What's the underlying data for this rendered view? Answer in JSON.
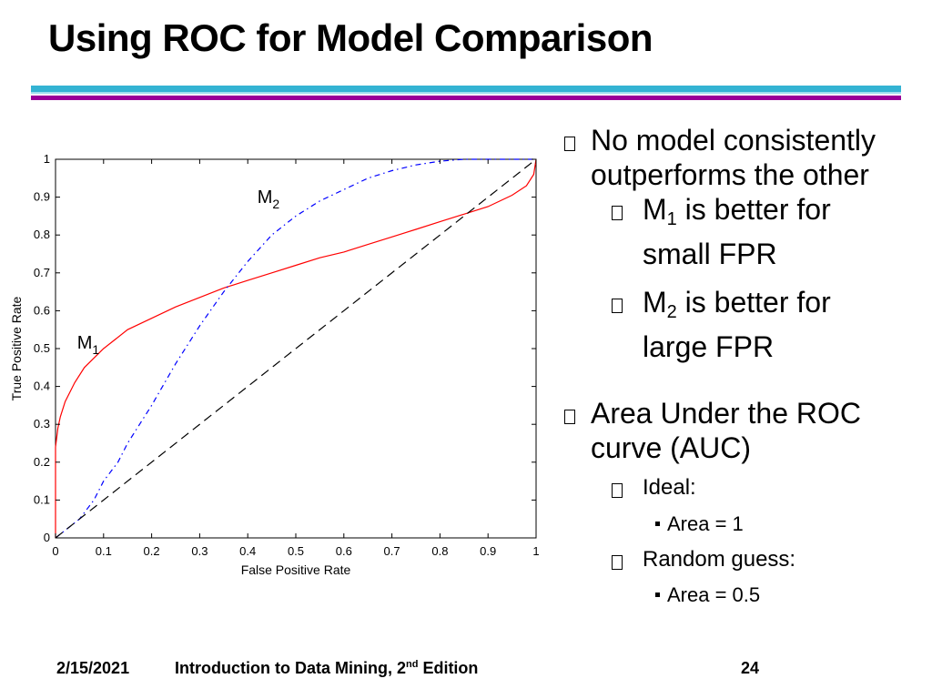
{
  "title": "Using ROC for Model Comparison",
  "bullets": {
    "b1_line1": "No model consistently",
    "b1_line2": "outperforms the other",
    "m1_main": "M",
    "m1_sub": "1",
    "m1_rest": " is better for",
    "m1_line2": "small FPR",
    "m2_main": "M",
    "m2_sub": "2",
    "m2_rest": " is better for",
    "m2_line2": "large FPR",
    "b2_line1": "Area Under the ROC",
    "b2_line2": "curve (AUC)",
    "ideal": "Ideal:",
    "ideal_area": "Area = 1",
    "random": "Random guess:",
    "random_area": "Area = 0.5"
  },
  "footer": {
    "date": "2/15/2021",
    "book_pre": "Introduction to Data Mining, 2",
    "book_sup": "nd",
    "book_post": " Edition",
    "page": "24"
  },
  "colors": {
    "m1": "#ff0000",
    "m2": "#0000ff",
    "diagonal": "#000000",
    "rule_cyan": "#33b3d3",
    "rule_purple": "#990099"
  },
  "chart_data": {
    "type": "line",
    "xlabel": "False Positive Rate",
    "ylabel": "True Positive Rate",
    "xlim": [
      0,
      1
    ],
    "ylim": [
      0,
      1
    ],
    "xticks": [
      "0",
      "0.1",
      "0.2",
      "0.3",
      "0.4",
      "0.5",
      "0.6",
      "0.7",
      "0.8",
      "0.9",
      "1"
    ],
    "yticks": [
      "0",
      "0.1",
      "0.2",
      "0.3",
      "0.4",
      "0.5",
      "0.6",
      "0.7",
      "0.8",
      "0.9",
      "1"
    ],
    "grid": false,
    "series": [
      {
        "name": "M1",
        "label_main": "M",
        "label_sub": "1",
        "style": "solid",
        "color": "#ff0000",
        "label_at": [
          0.045,
          0.5
        ],
        "x": [
          0,
          0,
          0.005,
          0.01,
          0.02,
          0.04,
          0.06,
          0.1,
          0.15,
          0.2,
          0.25,
          0.3,
          0.35,
          0.4,
          0.45,
          0.5,
          0.55,
          0.6,
          0.65,
          0.7,
          0.75,
          0.8,
          0.85,
          0.9,
          0.95,
          0.98,
          0.995,
          1
        ],
        "y": [
          0,
          0.24,
          0.29,
          0.32,
          0.36,
          0.41,
          0.45,
          0.5,
          0.55,
          0.58,
          0.61,
          0.635,
          0.66,
          0.68,
          0.7,
          0.72,
          0.74,
          0.755,
          0.775,
          0.795,
          0.815,
          0.835,
          0.855,
          0.875,
          0.905,
          0.93,
          0.96,
          1
        ]
      },
      {
        "name": "M2",
        "label_main": "M",
        "label_sub": "2",
        "style": "dashdot",
        "color": "#0000ff",
        "label_at": [
          0.42,
          0.885
        ],
        "x": [
          0,
          0.02,
          0.05,
          0.08,
          0.1,
          0.13,
          0.15,
          0.2,
          0.25,
          0.3,
          0.35,
          0.4,
          0.45,
          0.5,
          0.55,
          0.6,
          0.65,
          0.7,
          0.75,
          0.8,
          0.85,
          0.9,
          0.95,
          1
        ],
        "y": [
          0,
          0.02,
          0.05,
          0.1,
          0.15,
          0.2,
          0.25,
          0.35,
          0.46,
          0.56,
          0.65,
          0.73,
          0.8,
          0.85,
          0.89,
          0.92,
          0.95,
          0.97,
          0.985,
          0.995,
          1,
          1,
          1,
          1
        ]
      },
      {
        "name": "",
        "style": "dashed",
        "color": "#000000",
        "x": [
          0,
          1
        ],
        "y": [
          0,
          1
        ]
      }
    ]
  }
}
